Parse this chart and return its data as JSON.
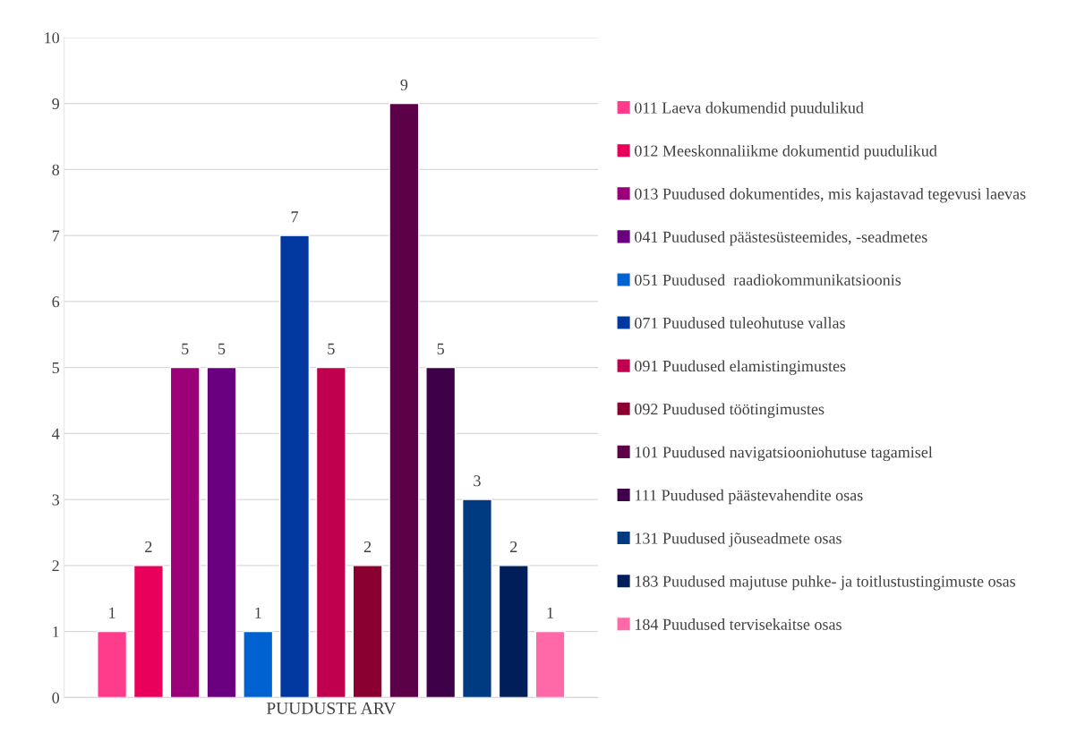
{
  "chart_data": {
    "type": "bar",
    "categories": [
      "PUUDUSTE ARV"
    ],
    "series": [
      {
        "name": "011 Laeva dokumendid puudulikud",
        "color": "#ff3b8b",
        "values": [
          1
        ]
      },
      {
        "name": "012 Meeskonnaliikme dokumentid puudulikud",
        "color": "#e8005a",
        "values": [
          2
        ]
      },
      {
        "name": "013 Puudused dokumentides, mis kajastavad tegevusi laevas",
        "color": "#9b0078",
        "values": [
          5
        ]
      },
      {
        "name": "041 Puudused päästesüsteemides, -seadmetes",
        "color": "#6a007f",
        "values": [
          5
        ]
      },
      {
        "name": "051 Puudused  raadiokommunikatsioonis",
        "color": "#0062d1",
        "values": [
          1
        ]
      },
      {
        "name": "071 Puudused tuleohutuse vallas",
        "color": "#0038a0",
        "values": [
          7
        ]
      },
      {
        "name": "091 Puudused elamistingimustes",
        "color": "#c0004e",
        "values": [
          5
        ]
      },
      {
        "name": "092 Puudused töötingimustes",
        "color": "#8a0030",
        "values": [
          2
        ]
      },
      {
        "name": "101 Puudused navigatsiooniohutuse tagamisel",
        "color": "#5c0048",
        "values": [
          9
        ]
      },
      {
        "name": "111 Puudused päästevahendite osas",
        "color": "#3e0048",
        "values": [
          5
        ]
      },
      {
        "name": "131 Puudused jõuseadmete osas",
        "color": "#003a80",
        "values": [
          3
        ]
      },
      {
        "name": "183 Puudused majutuse puhke- ja toitlustustingimuste osas",
        "color": "#001e5a",
        "values": [
          2
        ]
      },
      {
        "name": "184 Puudused tervisekaitse osas",
        "color": "#ff69a8",
        "values": [
          1
        ]
      }
    ],
    "ylim": [
      0,
      10
    ],
    "yticks": [
      0,
      1,
      2,
      3,
      4,
      5,
      6,
      7,
      8,
      9,
      10
    ],
    "grid": "y",
    "data_labels": true,
    "legend": "right"
  }
}
